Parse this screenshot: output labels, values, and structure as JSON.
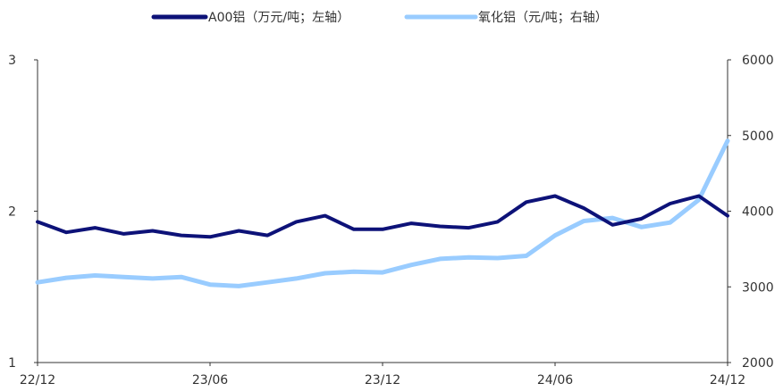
{
  "chart_data": {
    "type": "line",
    "legend_position": "top-center",
    "grid": false,
    "x_ticks": [
      "22/12",
      "23/06",
      "23/12",
      "24/06",
      "24/12"
    ],
    "x_range": [
      "22/12",
      "24/12"
    ],
    "y_left": {
      "ticks": [
        "1",
        "2",
        "3"
      ],
      "range": [
        1,
        3
      ]
    },
    "y_right": {
      "ticks": [
        "2000",
        "3000",
        "4000",
        "5000",
        "6000"
      ],
      "range": [
        2000,
        6000
      ]
    },
    "series": [
      {
        "name": "A00铝（万元/吨；左轴）",
        "axis": "left",
        "color": "#0d1278",
        "x": [
          "22/12",
          "23/01",
          "23/02",
          "23/03",
          "23/04",
          "23/05",
          "23/06",
          "23/07",
          "23/08",
          "23/09",
          "23/10",
          "23/11",
          "23/12",
          "24/01",
          "24/02",
          "24/03",
          "24/04",
          "24/05",
          "24/06",
          "24/07",
          "24/08",
          "24/09",
          "24/10",
          "24/11",
          "24/12"
        ],
        "values": [
          1.93,
          1.86,
          1.89,
          1.85,
          1.87,
          1.84,
          1.83,
          1.87,
          1.84,
          1.93,
          1.97,
          1.88,
          1.88,
          1.92,
          1.9,
          1.89,
          1.93,
          2.06,
          2.1,
          2.02,
          1.91,
          1.95,
          2.05,
          2.1,
          1.97
        ]
      },
      {
        "name": "氧化铝（元/吨；右轴）",
        "axis": "right",
        "color": "#99ccff",
        "x": [
          "22/12",
          "23/01",
          "23/02",
          "23/03",
          "23/04",
          "23/05",
          "23/06",
          "23/07",
          "23/08",
          "23/09",
          "23/10",
          "23/11",
          "23/12",
          "24/01",
          "24/02",
          "24/03",
          "24/04",
          "24/05",
          "24/06",
          "24/07",
          "24/08",
          "24/09",
          "24/10",
          "24/11",
          "24/12"
        ],
        "values": [
          3060,
          3120,
          3150,
          3130,
          3110,
          3130,
          3030,
          3010,
          3060,
          3110,
          3180,
          3200,
          3190,
          3290,
          3370,
          3390,
          3380,
          3410,
          3680,
          3870,
          3910,
          3790,
          3850,
          4150,
          4930
        ]
      }
    ]
  }
}
